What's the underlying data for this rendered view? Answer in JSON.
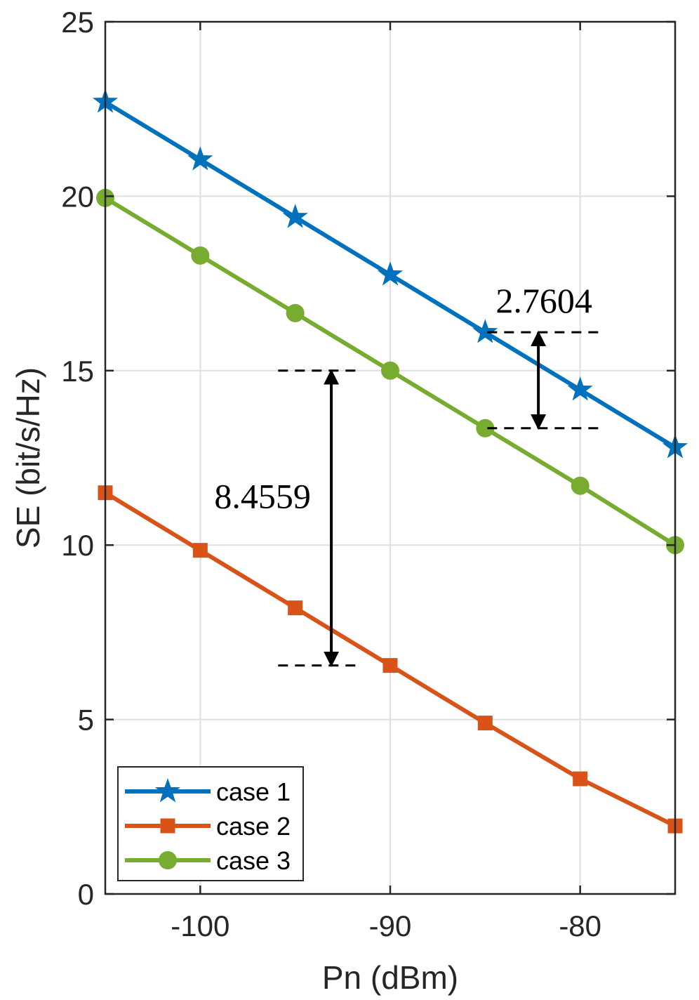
{
  "chart_data": {
    "type": "line",
    "title": "",
    "xlabel": "Pn (dBm)",
    "ylabel": "SE (bit/s/Hz)",
    "xlim": [
      -105,
      -75
    ],
    "ylim": [
      0,
      25
    ],
    "x_ticks": [
      -100,
      -90,
      -80
    ],
    "x_tick_labels": [
      "-100",
      "-90",
      "-80"
    ],
    "y_ticks": [
      0,
      5,
      10,
      15,
      20,
      25
    ],
    "y_tick_labels": [
      "0",
      "5",
      "10",
      "15",
      "20",
      "25"
    ],
    "grid": true,
    "legend_position": "bottom-left",
    "x": [
      -105,
      -100,
      -95,
      -90,
      -85,
      -80,
      -75
    ],
    "series": [
      {
        "name": "case 1",
        "marker": "star",
        "color": "#0072BD",
        "values": [
          22.7,
          21.05,
          19.4,
          17.75,
          16.1,
          14.45,
          12.8
        ]
      },
      {
        "name": "case 2",
        "marker": "square",
        "color": "#D95319",
        "values": [
          11.5,
          9.85,
          8.2,
          6.55,
          4.9,
          3.3,
          1.95
        ]
      },
      {
        "name": "case 3",
        "marker": "circle",
        "color": "#77AC30",
        "values": [
          19.95,
          18.3,
          16.65,
          15.0,
          13.35,
          11.7,
          10.0
        ]
      }
    ],
    "annotations": [
      {
        "text": "2.7604",
        "x": -82.2,
        "y_from": 13.35,
        "y_to": 16.1
      },
      {
        "text": "8.4559",
        "x": -93.1,
        "y_from": 6.55,
        "y_to": 15.0
      }
    ]
  }
}
